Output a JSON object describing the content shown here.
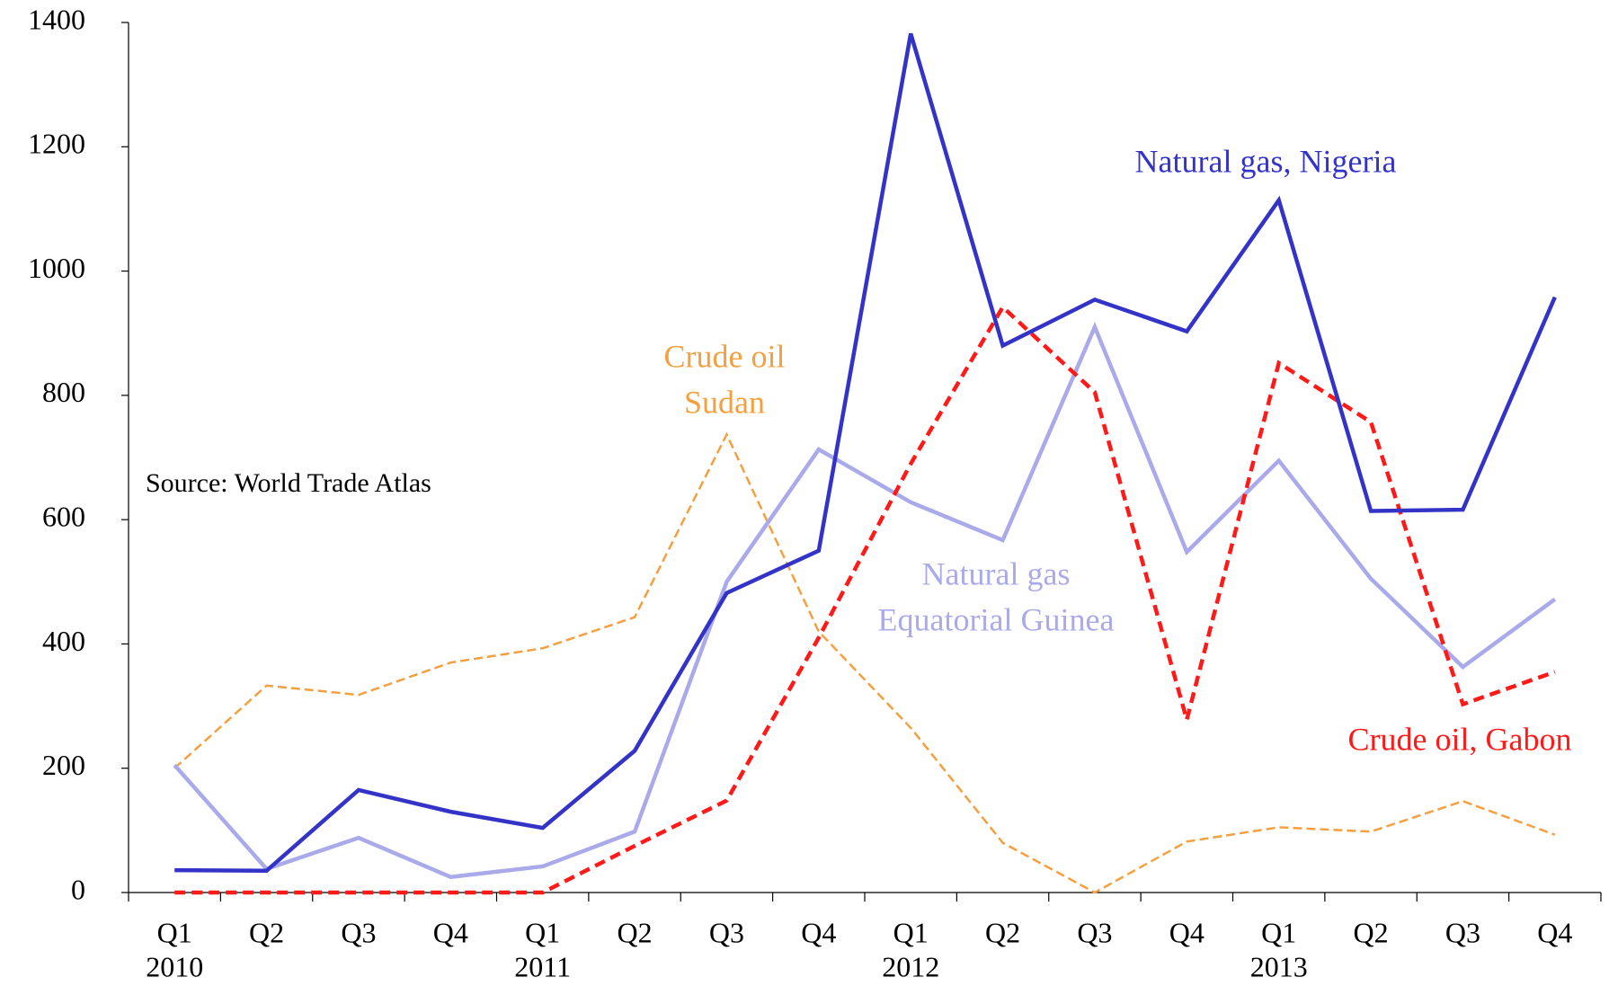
{
  "chart_data": {
    "type": "line",
    "categories": [
      "Q1",
      "Q2",
      "Q3",
      "Q4",
      "Q1",
      "Q2",
      "Q3",
      "Q4",
      "Q1",
      "Q2",
      "Q3",
      "Q4",
      "Q1",
      "Q2",
      "Q3",
      "Q4"
    ],
    "years": [
      "2010",
      null,
      null,
      null,
      "2011",
      null,
      null,
      null,
      "2012",
      null,
      null,
      null,
      "2013",
      null,
      null,
      null
    ],
    "ylim": [
      0,
      1400
    ],
    "yticks": [
      0,
      200,
      400,
      600,
      800,
      1000,
      1200,
      1400
    ],
    "annotation": "Source: World Trade Atlas",
    "series": [
      {
        "name_lines": [
          "Crude oil",
          "Sudan"
        ],
        "color": "#f5a040",
        "dash": true,
        "width": 2.5,
        "values": [
          200,
          333,
          318,
          370,
          393,
          443,
          737,
          420,
          265,
          80,
          0,
          82,
          105,
          98,
          147,
          93
        ]
      },
      {
        "name_lines": [
          "Natural gas",
          "Equatorial Guinea"
        ],
        "color": "#aaaaea",
        "dash": false,
        "width": 4.5,
        "values": [
          205,
          38,
          88,
          25,
          42,
          98,
          500,
          713,
          628,
          567,
          910,
          548,
          695,
          505,
          363,
          472
        ]
      },
      {
        "name_lines": [
          "Crude oil, Gabon"
        ],
        "color": "#ff1a1a",
        "dash": true,
        "width": 4.5,
        "values": [
          0,
          0,
          0,
          0,
          0,
          75,
          148,
          410,
          690,
          942,
          805,
          278,
          852,
          757,
          303,
          355
        ]
      },
      {
        "name_lines": [
          "Natural gas, Nigeria"
        ],
        "color": "#3333c8",
        "dash": false,
        "width": 4.5,
        "values": [
          36,
          35,
          165,
          130,
          104,
          228,
          482,
          550,
          1382,
          880,
          954,
          903,
          1114,
          614,
          616,
          958
        ]
      }
    ]
  }
}
